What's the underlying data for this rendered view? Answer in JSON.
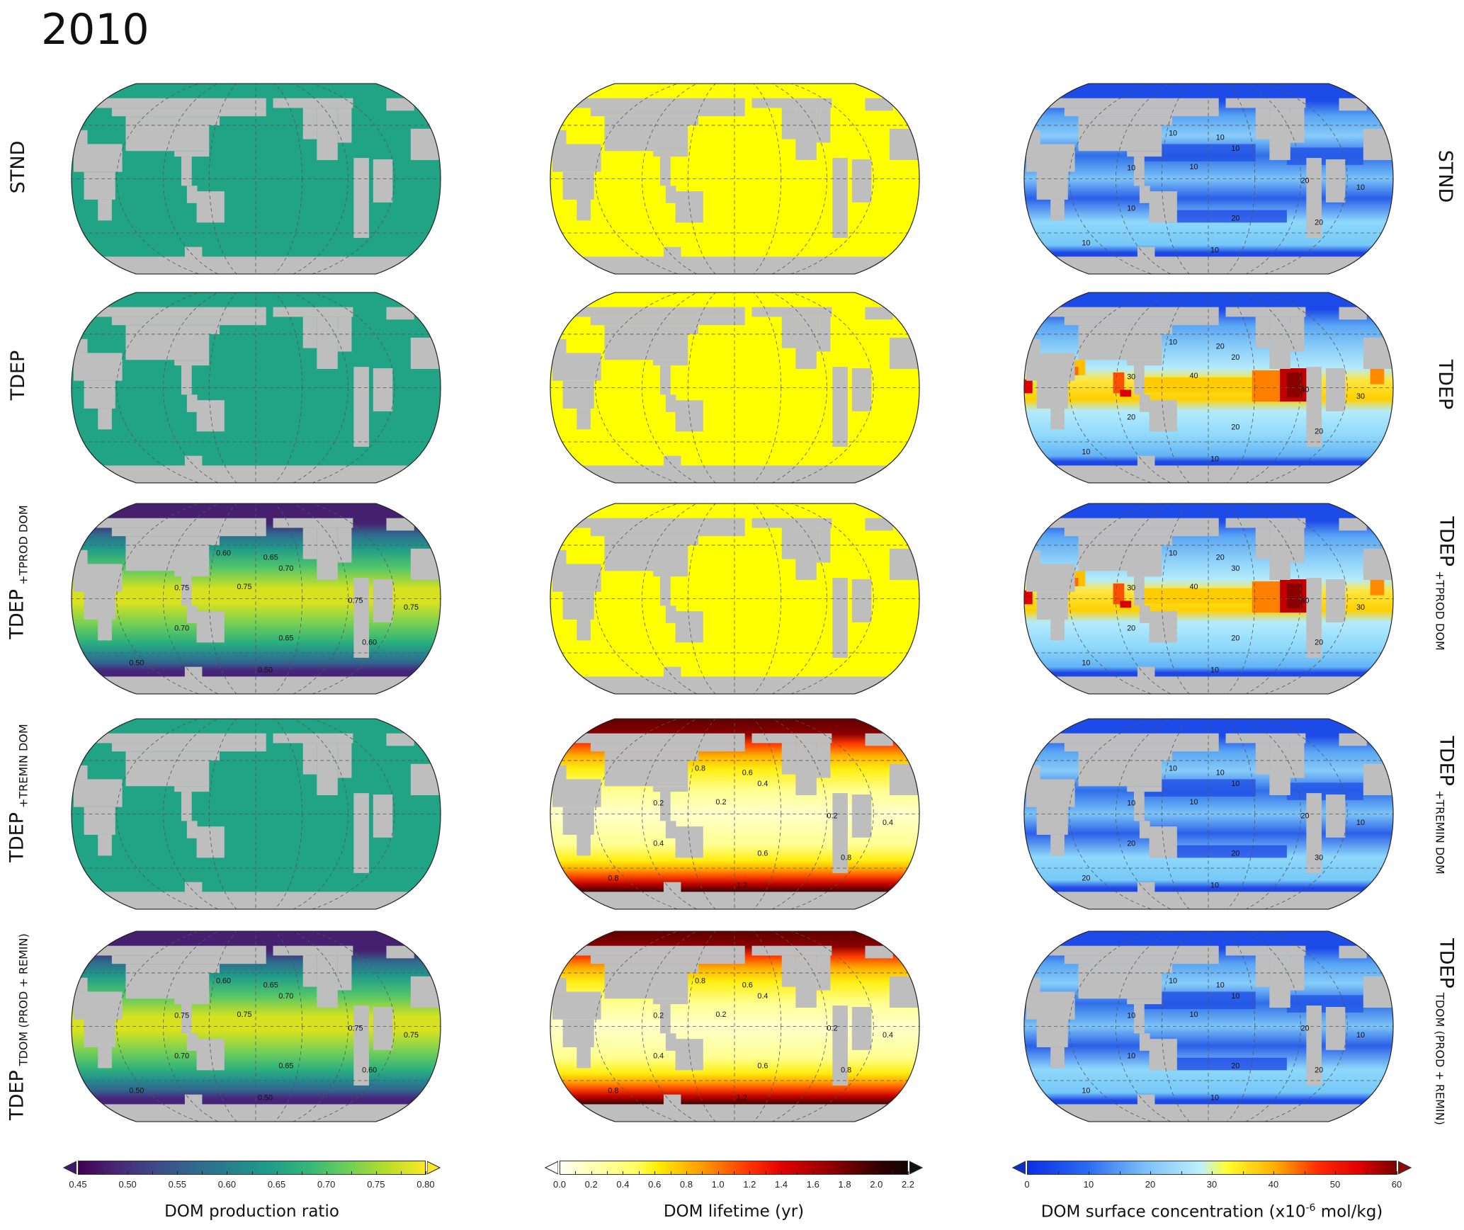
{
  "title": "2010",
  "rows": [
    {
      "left_main": "STND",
      "left_sub": "",
      "right_main": "STND",
      "right_sub": ""
    },
    {
      "left_main": "TDEP",
      "left_sub": "",
      "right_main": "TDEP",
      "right_sub": ""
    },
    {
      "left_main": "TDEP",
      "left_sub": "+TPROD DOM",
      "right_main": "TDEP",
      "right_sub": "+TPROD DOM"
    },
    {
      "left_main": "TDEP",
      "left_sub": "+TREMIN DOM",
      "right_main": "TDEP",
      "right_sub": "+TREMIN DOM"
    },
    {
      "left_main": "TDEP",
      "left_sub": "TDOM (PROD + REMIN)",
      "right_main": "TDEP",
      "right_sub": "TDOM (PROD + REMIN)"
    }
  ],
  "panels": [
    {
      "row": 0,
      "col": 0,
      "field": "DOM production ratio",
      "fill": "viridis-uniform",
      "contour_labels": []
    },
    {
      "row": 0,
      "col": 1,
      "field": "DOM lifetime",
      "fill": "yellow-uniform",
      "contour_labels": []
    },
    {
      "row": 0,
      "col": 2,
      "field": "DOM surface concentration",
      "fill": "conc-standard",
      "contour_labels": [
        "10",
        "10",
        "10",
        "10",
        "10",
        "20",
        "10",
        "10",
        "20",
        "20",
        "10",
        "10"
      ]
    },
    {
      "row": 1,
      "col": 0,
      "field": "DOM production ratio",
      "fill": "viridis-uniform",
      "contour_labels": []
    },
    {
      "row": 1,
      "col": 1,
      "field": "DOM lifetime",
      "fill": "yellow-uniform",
      "contour_labels": []
    },
    {
      "row": 1,
      "col": 2,
      "field": "DOM surface concentration",
      "fill": "conc-hot",
      "contour_labels": [
        "10",
        "20",
        "20",
        "30",
        "40",
        "40",
        "30",
        "20",
        "20",
        "20",
        "10",
        "10"
      ]
    },
    {
      "row": 2,
      "col": 0,
      "field": "DOM production ratio",
      "fill": "viridis-varying",
      "contour_labels": [
        "0.60",
        "0.65",
        "0.70",
        "0.75",
        "0.75",
        "0.75",
        "0.75",
        "0.70",
        "0.65",
        "0.60",
        "0.50",
        "0.50"
      ]
    },
    {
      "row": 2,
      "col": 1,
      "field": "DOM lifetime",
      "fill": "yellow-uniform",
      "contour_labels": []
    },
    {
      "row": 2,
      "col": 2,
      "field": "DOM surface concentration",
      "fill": "conc-hot",
      "contour_labels": [
        "10",
        "20",
        "30",
        "30",
        "40",
        "40",
        "30",
        "20",
        "20",
        "20",
        "10",
        "10"
      ]
    },
    {
      "row": 3,
      "col": 0,
      "field": "DOM production ratio",
      "fill": "viridis-uniform",
      "contour_labels": []
    },
    {
      "row": 3,
      "col": 1,
      "field": "DOM lifetime",
      "fill": "heat-varying",
      "contour_labels": [
        "0.8",
        "0.6",
        "0.4",
        "0.2",
        "0.2",
        "0.2",
        "0.4",
        "0.4",
        "0.6",
        "0.8",
        "0.8",
        "1.2"
      ]
    },
    {
      "row": 3,
      "col": 2,
      "field": "DOM surface concentration",
      "fill": "conc-standard",
      "contour_labels": [
        "10",
        "10",
        "10",
        "10",
        "10",
        "20",
        "10",
        "20",
        "20",
        "30",
        "20",
        "10"
      ]
    },
    {
      "row": 4,
      "col": 0,
      "field": "DOM production ratio",
      "fill": "viridis-varying",
      "contour_labels": [
        "0.60",
        "0.65",
        "0.70",
        "0.75",
        "0.75",
        "0.75",
        "0.75",
        "0.70",
        "0.65",
        "0.60",
        "0.50",
        "0.50"
      ]
    },
    {
      "row": 4,
      "col": 1,
      "field": "DOM lifetime",
      "fill": "heat-varying",
      "contour_labels": [
        "0.8",
        "0.6",
        "0.4",
        "0.2",
        "0.2",
        "0.2",
        "0.4",
        "0.4",
        "0.6",
        "0.8",
        "0.8",
        "1.2"
      ]
    },
    {
      "row": 4,
      "col": 2,
      "field": "DOM surface concentration",
      "fill": "conc-standard",
      "contour_labels": [
        "10",
        "10",
        "10",
        "10",
        "10",
        "20",
        "10",
        "10",
        "20",
        "20",
        "10",
        "10"
      ]
    }
  ],
  "colorbars": [
    {
      "label_pre": "DOM production ratio",
      "label_sup": "",
      "label_post": "",
      "min": 0.45,
      "max": 0.8,
      "minor_step": 0.025,
      "ticks": [
        "0.45",
        "0.50",
        "0.55",
        "0.60",
        "0.65",
        "0.70",
        "0.75",
        "0.80"
      ],
      "extend_low": "#3f1a6b",
      "extend_high": "#fde725"
    },
    {
      "label_pre": "DOM lifetime (yr)",
      "label_sup": "",
      "label_post": "",
      "min": 0.0,
      "max": 2.2,
      "minor_step": 0.1,
      "ticks": [
        "0.0",
        "0.2",
        "0.4",
        "0.6",
        "0.8",
        "1.0",
        "1.2",
        "1.4",
        "1.6",
        "1.8",
        "2.0",
        "2.2"
      ],
      "extend_low": "#ffffff",
      "extend_high": "#111111"
    },
    {
      "label_pre": "DOM surface concentration (x10",
      "label_sup": "-6",
      "label_post": " mol/kg)",
      "min": 0,
      "max": 60,
      "minor_step": 5,
      "ticks": [
        "0",
        "10",
        "20",
        "30",
        "40",
        "50",
        "60"
      ],
      "extend_low": "#0b2fd0",
      "extend_high": "#8b0a0a"
    }
  ],
  "colors": {
    "land": "#bebebe",
    "viridis_uniform": "#21a386",
    "yellow_uniform": "#ffff00"
  }
}
